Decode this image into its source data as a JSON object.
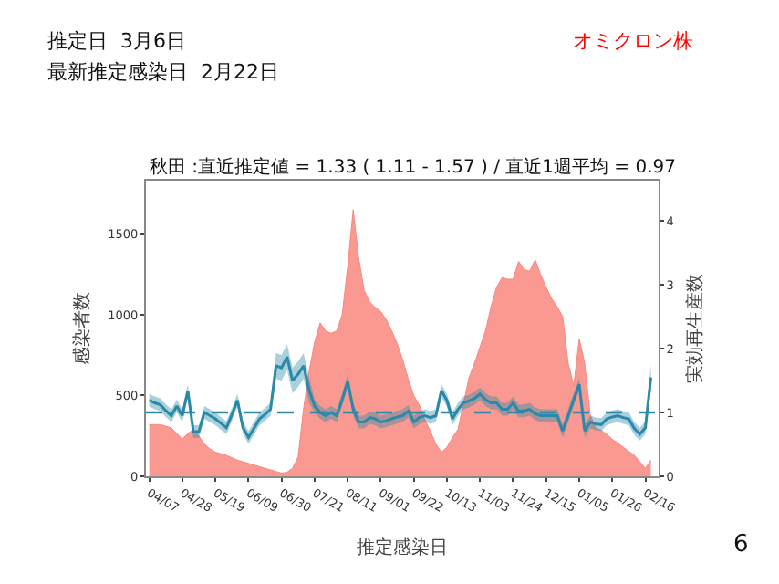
{
  "chart_data": {
    "type": "area",
    "title": "秋田 :直近推定値 = 1.33 ( 1.11 - 1.57 ) / 直近1週平均 = 0.97",
    "xlabel": "推定感染日",
    "ylabel": "感染者数",
    "y2label": "実効再生産数",
    "annotations": [
      "推定日  3月6日",
      "最新推定感染日  2月22日",
      "オミクロン株",
      "6"
    ],
    "categories": [
      "04/07",
      null,
      null,
      null,
      null,
      null,
      "04/28",
      null,
      null,
      null,
      null,
      null,
      "05/19",
      null,
      null,
      null,
      null,
      null,
      "06/09",
      null,
      null,
      null,
      null,
      null,
      "06/30",
      null,
      null,
      null,
      null,
      null,
      "07/21",
      null,
      null,
      null,
      null,
      null,
      "08/11",
      null,
      null,
      null,
      null,
      null,
      "09/01",
      null,
      null,
      null,
      null,
      null,
      "09/22",
      null,
      null,
      null,
      null,
      null,
      "10/13",
      null,
      null,
      null,
      null,
      null,
      "11/03",
      null,
      null,
      null,
      null,
      null,
      "11/24",
      null,
      null,
      null,
      null,
      null,
      "12/15",
      null,
      null,
      null,
      null,
      null,
      "01/05",
      null,
      null,
      null,
      null,
      null,
      "01/26",
      null,
      null,
      null,
      null,
      null,
      "02/16",
      null
    ],
    "ylim": [
      0,
      1830
    ],
    "yticks": [
      0,
      500,
      1000,
      1500
    ],
    "y2lim": [
      0,
      4.63
    ],
    "y2ticks": [
      0,
      1,
      2,
      3,
      4
    ],
    "series": [
      {
        "color": "#f8877f",
        "values": [
          320,
          320,
          320,
          310,
          300,
          265,
          230,
          265,
          290,
          250,
          200,
          170,
          150,
          140,
          130,
          115,
          100,
          90,
          80,
          70,
          60,
          50,
          40,
          30,
          20,
          25,
          50,
          120,
          420,
          650,
          830,
          950,
          900,
          885,
          900,
          1000,
          1300,
          1650,
          1350,
          1150,
          1080,
          1045,
          1020,
          970,
          900,
          820,
          720,
          600,
          500,
          440,
          350,
          280,
          200,
          150,
          180,
          240,
          290,
          450,
          610,
          700,
          800,
          900,
          1050,
          1170,
          1230,
          1220,
          1220,
          1330,
          1280,
          1270,
          1340,
          1250,
          1170,
          1100,
          1050,
          990,
          700,
          560,
          850,
          700,
          380,
          300,
          285,
          260,
          230,
          205,
          180,
          155,
          130,
          90,
          50,
          100
        ]
      },
      {
        "type": "line",
        "axis": "y2",
        "color": "#2a89a8",
        "values": [
          1.19,
          1.15,
          1.12,
          1.03,
          0.95,
          1.1,
          0.95,
          1.34,
          0.7,
          0.7,
          1.0,
          0.95,
          0.9,
          0.83,
          0.76,
          0.97,
          1.19,
          0.76,
          0.61,
          0.75,
          0.9,
          0.97,
          1.05,
          1.73,
          1.7,
          1.87,
          1.5,
          1.6,
          1.73,
          1.35,
          1.1,
          1.0,
          0.95,
          1.0,
          0.95,
          1.2,
          1.49,
          1.05,
          0.85,
          0.85,
          0.92,
          0.9,
          0.85,
          0.87,
          0.9,
          0.93,
          0.95,
          1.02,
          0.85,
          0.92,
          0.95,
          0.92,
          0.95,
          1.34,
          1.19,
          0.9,
          1.05,
          1.15,
          1.18,
          1.22,
          1.29,
          1.2,
          1.15,
          1.15,
          1.05,
          1.05,
          1.15,
          1.02,
          1.03,
          1.05,
          0.98,
          0.95,
          0.95,
          0.95,
          0.95,
          0.71,
          0.95,
          1.2,
          1.44,
          0.71,
          0.85,
          0.82,
          0.81,
          0.9,
          0.93,
          0.95,
          0.92,
          0.9,
          0.75,
          0.66,
          0.76,
          1.55
        ],
        "lower": [
          1.09,
          1.05,
          1.02,
          0.93,
          0.85,
          1.0,
          0.85,
          1.24,
          0.6,
          0.6,
          0.9,
          0.85,
          0.8,
          0.73,
          0.66,
          0.87,
          1.09,
          0.66,
          0.51,
          0.65,
          0.8,
          0.87,
          0.95,
          1.53,
          1.5,
          1.67,
          1.3,
          1.4,
          1.53,
          1.15,
          1.0,
          0.9,
          0.85,
          0.9,
          0.85,
          1.1,
          1.39,
          0.95,
          0.75,
          0.75,
          0.82,
          0.8,
          0.75,
          0.77,
          0.8,
          0.83,
          0.85,
          0.92,
          0.75,
          0.82,
          0.85,
          0.82,
          0.85,
          1.24,
          1.09,
          0.8,
          0.95,
          1.05,
          1.08,
          1.12,
          1.19,
          1.1,
          1.05,
          1.05,
          0.95,
          0.95,
          1.05,
          0.92,
          0.93,
          0.95,
          0.88,
          0.85,
          0.85,
          0.85,
          0.85,
          0.61,
          0.85,
          1.1,
          1.34,
          0.61,
          0.75,
          0.72,
          0.71,
          0.8,
          0.83,
          0.85,
          0.82,
          0.8,
          0.65,
          0.56,
          0.66,
          1.35
        ],
        "upper": [
          1.29,
          1.25,
          1.22,
          1.13,
          1.05,
          1.2,
          1.05,
          1.44,
          0.8,
          0.8,
          1.1,
          1.05,
          1.0,
          0.93,
          0.86,
          1.07,
          1.29,
          0.86,
          0.71,
          0.85,
          1.0,
          1.07,
          1.15,
          1.93,
          1.9,
          2.07,
          1.7,
          1.8,
          1.93,
          1.55,
          1.2,
          1.1,
          1.05,
          1.1,
          1.05,
          1.3,
          1.59,
          1.15,
          0.95,
          0.95,
          1.02,
          1.0,
          0.95,
          0.97,
          1.0,
          1.03,
          1.05,
          1.12,
          0.95,
          1.02,
          1.05,
          1.02,
          1.05,
          1.44,
          1.29,
          1.0,
          1.15,
          1.25,
          1.28,
          1.32,
          1.39,
          1.3,
          1.25,
          1.25,
          1.15,
          1.15,
          1.25,
          1.12,
          1.13,
          1.15,
          1.08,
          1.05,
          1.05,
          1.05,
          1.05,
          0.81,
          1.05,
          1.3,
          1.54,
          0.81,
          0.95,
          0.92,
          0.91,
          1.0,
          1.03,
          1.05,
          1.02,
          1.0,
          0.85,
          0.76,
          0.86,
          1.75
        ]
      }
    ],
    "ref_lines": [
      {
        "axis": "y2",
        "value": 1,
        "color": "#2a89a8",
        "line_style": "dashed"
      }
    ],
    "marker": "none",
    "grid": false,
    "legend": false
  }
}
